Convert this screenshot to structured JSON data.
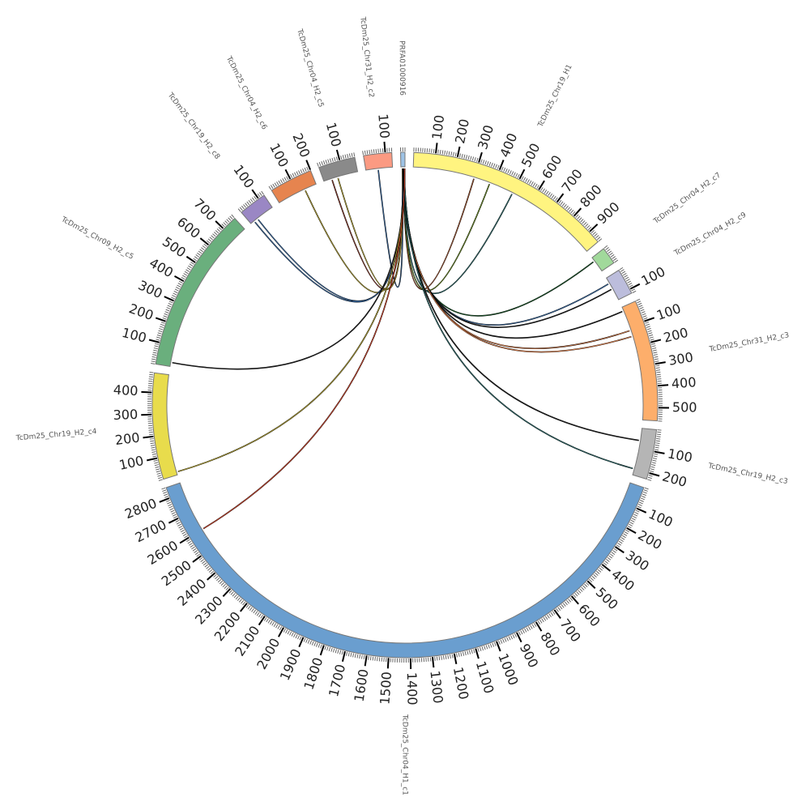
{
  "chart_data": {
    "type": "circos",
    "title": "",
    "tick_interval": 100,
    "minor_tick_interval": 10,
    "segments": [
      {
        "name": "PRFA01000916",
        "length": 20,
        "color": "#9ec3e6"
      },
      {
        "name": "TcDm25_Chr19_H1",
        "length": 960,
        "color": "#fff480"
      },
      {
        "name": "TcDm25_Chr04_H2_c7",
        "length": 80,
        "color": "#a1d99b"
      },
      {
        "name": "TcDm25_Chr04_H2_c9",
        "length": 120,
        "color": "#bcbddc"
      },
      {
        "name": "TcDm25_Chr31_H2_c3",
        "length": 560,
        "color": "#fdae6b"
      },
      {
        "name": "TcDm25_Chr19_H2_c3",
        "length": 230,
        "color": "#b5b5b5"
      },
      {
        "name": "TcDm25_Chr04_H1_c1",
        "length": 2850,
        "color": "#6a9ecf"
      },
      {
        "name": "TcDm25_Chr19_H2_c4",
        "length": 490,
        "color": "#e8dc4c"
      },
      {
        "name": "TcDm25_Chr09_H2_c5",
        "length": 770,
        "color": "#6aaf7d"
      },
      {
        "name": "TcDm25_Chr19_H2_c8",
        "length": 130,
        "color": "#9a87c4"
      },
      {
        "name": "TcDm25_Chr04_H2_c6",
        "length": 200,
        "color": "#e6844f"
      },
      {
        "name": "TcDm25_Chr04_H2_c5",
        "length": 170,
        "color": "#8a8a8a"
      },
      {
        "name": "TcDm25_Chr31_H2_c2",
        "length": 130,
        "color": "#fb9a82"
      }
    ],
    "links": [
      {
        "from": [
          0,
          8
        ],
        "to": [
          12,
          60
        ],
        "color": "#3b6ea8"
      },
      {
        "from": [
          0,
          10
        ],
        "to": [
          11,
          40
        ],
        "color": "#8b3a2a"
      },
      {
        "from": [
          0,
          10
        ],
        "to": [
          11,
          70
        ],
        "color": "#b7a532"
      },
      {
        "from": [
          0,
          9
        ],
        "to": [
          10,
          140
        ],
        "color": "#b7a532"
      },
      {
        "from": [
          0,
          11
        ],
        "to": [
          9,
          40
        ],
        "color": "#3b6ea8"
      },
      {
        "from": [
          0,
          12
        ],
        "to": [
          9,
          20
        ],
        "color": "#3b6ea8"
      },
      {
        "from": [
          0,
          12
        ],
        "to": [
          1,
          300
        ],
        "color": "#a0522d"
      },
      {
        "from": [
          0,
          13
        ],
        "to": [
          1,
          380
        ],
        "color": "#6b8e23"
      },
      {
        "from": [
          0,
          14
        ],
        "to": [
          1,
          500
        ],
        "color": "#2f6f6f"
      },
      {
        "from": [
          0,
          14
        ],
        "to": [
          2,
          20
        ],
        "color": "#1a5a2a"
      },
      {
        "from": [
          0,
          15
        ],
        "to": [
          3,
          30
        ],
        "color": "#3b6ea8"
      },
      {
        "from": [
          0,
          15
        ],
        "to": [
          3,
          60
        ],
        "color": "#222222"
      },
      {
        "from": [
          0,
          16
        ],
        "to": [
          4,
          20
        ],
        "color": "#222222"
      },
      {
        "from": [
          0,
          16
        ],
        "to": [
          4,
          120
        ],
        "color": "#e6844f"
      },
      {
        "from": [
          0,
          16
        ],
        "to": [
          4,
          150
        ],
        "color": "#e6844f"
      },
      {
        "from": [
          0,
          17
        ],
        "to": [
          5,
          60
        ],
        "color": "#222222"
      },
      {
        "from": [
          0,
          17
        ],
        "to": [
          5,
          200
        ],
        "color": "#2f6f6f"
      },
      {
        "from": [
          0,
          18
        ],
        "to": [
          8,
          20
        ],
        "color": "#222222"
      },
      {
        "from": [
          0,
          18
        ],
        "to": [
          7,
          15
        ],
        "color": "#b7a532"
      },
      {
        "from": [
          0,
          19
        ],
        "to": [
          6,
          2600
        ],
        "color": "#d9452b"
      }
    ]
  }
}
